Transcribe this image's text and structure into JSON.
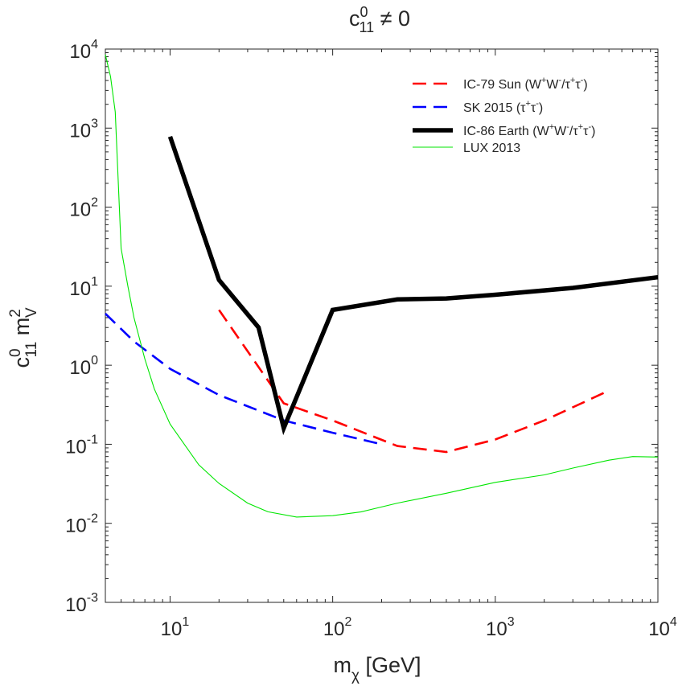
{
  "chart_data": {
    "type": "line",
    "title": {
      "base": "c",
      "sub": "11",
      "sup": "0",
      "rest": " ≠ 0"
    },
    "xlabel": {
      "base": "m",
      "sub": "χ",
      "rest": " [GeV]"
    },
    "ylabel": {
      "base": "c",
      "sub": "11",
      "sup": "0",
      "base2": " m",
      "sub2": "V",
      "sup2": "2"
    },
    "xscale": "log",
    "yscale": "log",
    "xlim": [
      4,
      10000
    ],
    "ylim": [
      0.001,
      10000
    ],
    "x_ticks": [
      {
        "value": 10,
        "base": "10",
        "exp": "1"
      },
      {
        "value": 100,
        "base": "10",
        "exp": "2"
      },
      {
        "value": 1000,
        "base": "10",
        "exp": "3"
      },
      {
        "value": 10000,
        "base": "10",
        "exp": "4"
      }
    ],
    "y_ticks": [
      {
        "value": 0.001,
        "base": "10",
        "exp": "-3"
      },
      {
        "value": 0.01,
        "base": "10",
        "exp": "-2"
      },
      {
        "value": 0.1,
        "base": "10",
        "exp": "-1"
      },
      {
        "value": 1,
        "base": "10",
        "exp": "0"
      },
      {
        "value": 10,
        "base": "10",
        "exp": "1"
      },
      {
        "value": 100,
        "base": "10",
        "exp": "2"
      },
      {
        "value": 1000,
        "base": "10",
        "exp": "3"
      },
      {
        "value": 10000,
        "base": "10",
        "exp": "4"
      }
    ],
    "legend_position": "top-right",
    "series": [
      {
        "key": "ic79",
        "legend": [
          {
            "t": "IC-79 Sun (W"
          },
          {
            "t": "+",
            "s": "sup"
          },
          {
            "t": "W"
          },
          {
            "t": "-",
            "s": "sup"
          },
          {
            "t": "/τ"
          },
          {
            "t": "+",
            "s": "sup"
          },
          {
            "t": "τ"
          },
          {
            "t": "-",
            "s": "sup"
          },
          {
            "t": ")"
          }
        ],
        "color": "#ff0000",
        "style": "dashed",
        "width": "medium",
        "points": [
          [
            20,
            5.0
          ],
          [
            50,
            0.33
          ],
          [
            100,
            0.2
          ],
          [
            250,
            0.095
          ],
          [
            500,
            0.08
          ],
          [
            1000,
            0.115
          ],
          [
            2000,
            0.2
          ],
          [
            4700,
            0.45
          ]
        ]
      },
      {
        "key": "sk2015",
        "legend": [
          {
            "t": "SK 2015 (τ"
          },
          {
            "t": "+",
            "s": "sup"
          },
          {
            "t": "τ"
          },
          {
            "t": "-",
            "s": "sup"
          },
          {
            "t": ")"
          }
        ],
        "color": "#0000ff",
        "style": "dashed",
        "width": "medium",
        "points": [
          [
            4,
            4.5
          ],
          [
            6,
            2.0
          ],
          [
            10,
            0.9
          ],
          [
            20,
            0.42
          ],
          [
            50,
            0.2
          ],
          [
            100,
            0.14
          ],
          [
            200,
            0.1
          ]
        ]
      },
      {
        "key": "ic86",
        "legend": [
          {
            "t": "IC-86 Earth (W"
          },
          {
            "t": "+",
            "s": "sup"
          },
          {
            "t": "W"
          },
          {
            "t": "-",
            "s": "sup"
          },
          {
            "t": "/τ"
          },
          {
            "t": "+",
            "s": "sup"
          },
          {
            "t": "τ"
          },
          {
            "t": "-",
            "s": "sup"
          },
          {
            "t": ")"
          }
        ],
        "color": "#000000",
        "style": "solid",
        "width": "thick",
        "points": [
          [
            10,
            780
          ],
          [
            20,
            12
          ],
          [
            35,
            3.0
          ],
          [
            50,
            0.16
          ],
          [
            100,
            5.0
          ],
          [
            250,
            6.8
          ],
          [
            500,
            7.0
          ],
          [
            1000,
            7.8
          ],
          [
            3000,
            9.5
          ],
          [
            10000,
            13
          ]
        ]
      },
      {
        "key": "lux2013",
        "legend": [
          {
            "t": "LUX 2013"
          }
        ],
        "color": "#00e600",
        "style": "solid",
        "width": "thin",
        "points": [
          [
            4,
            8500
          ],
          [
            4.3,
            4500
          ],
          [
            4.6,
            1600
          ],
          [
            5.0,
            30
          ],
          [
            5.5,
            10
          ],
          [
            6,
            4.0
          ],
          [
            7,
            1.2
          ],
          [
            8,
            0.5
          ],
          [
            10,
            0.18
          ],
          [
            15,
            0.055
          ],
          [
            20,
            0.032
          ],
          [
            30,
            0.018
          ],
          [
            40,
            0.014
          ],
          [
            60,
            0.012
          ],
          [
            100,
            0.0125
          ],
          [
            150,
            0.014
          ],
          [
            250,
            0.018
          ],
          [
            500,
            0.024
          ],
          [
            1000,
            0.033
          ],
          [
            2000,
            0.041
          ],
          [
            3000,
            0.05
          ],
          [
            5000,
            0.063
          ],
          [
            7000,
            0.07
          ],
          [
            10000,
            0.069
          ]
        ]
      }
    ]
  }
}
